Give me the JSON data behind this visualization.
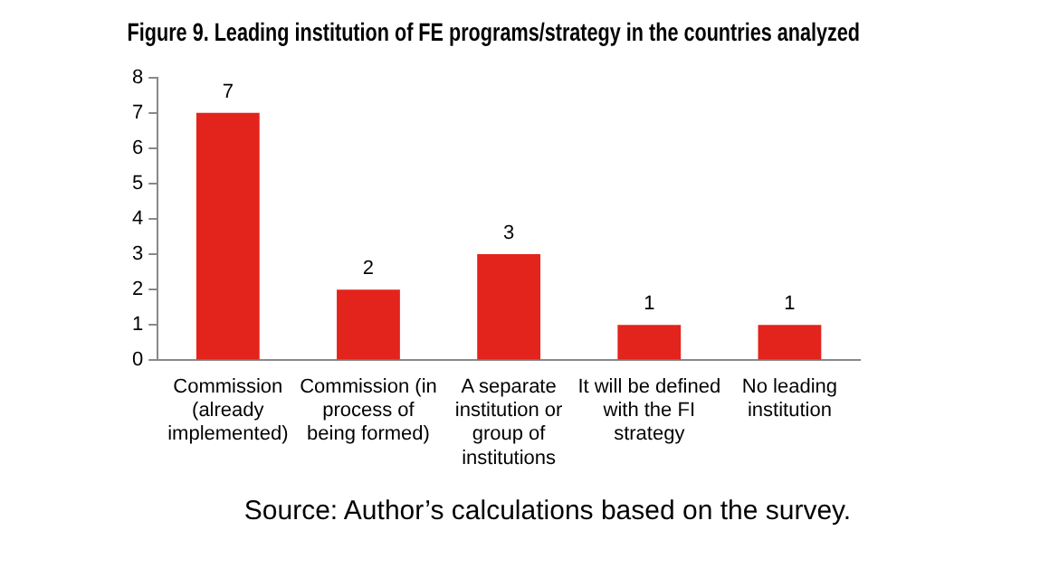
{
  "chart_data": {
    "type": "bar",
    "title": "Figure 9. Leading institution of FE programs/strategy in the countries analyzed",
    "categories": [
      "Commission (already implemented)",
      "Commission (in process of being formed)",
      "A separate institution or group of institutions",
      "It will be defined with the FI strategy",
      "No leading institution"
    ],
    "values": [
      7,
      2,
      3,
      1,
      1
    ],
    "color": "#e3241c",
    "ylim": [
      0,
      8
    ],
    "yticks": [
      0,
      1,
      2,
      3,
      4,
      5,
      6,
      7,
      8
    ],
    "grid": false,
    "legend": false,
    "data_labels": true,
    "annotations": [
      "Source: Author’s calculations based on the survey."
    ]
  }
}
